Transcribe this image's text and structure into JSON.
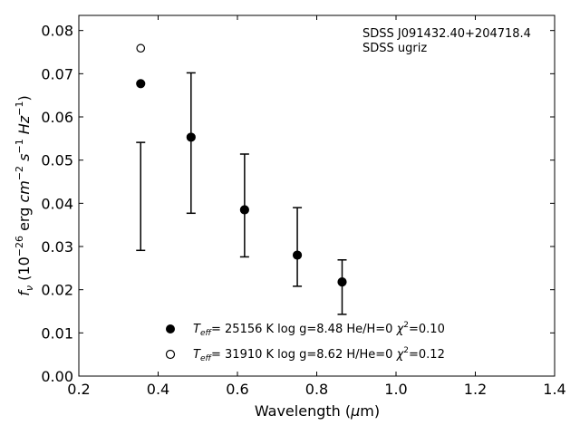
{
  "chart_data": {
    "type": "scatter",
    "xlabel": "Wavelength (μm)",
    "ylabel": "f_ν (10^-26 erg cm^-2 s^-1 Hz^-1)",
    "xlim": [
      0.2,
      1.4
    ],
    "ylim": [
      0.0,
      0.0835
    ],
    "xticks": [
      0.2,
      0.4,
      0.6,
      0.8,
      1.0,
      1.2,
      1.4
    ],
    "xtick_labels": [
      "0.2",
      "0.4",
      "0.6",
      "0.8",
      "1.0",
      "1.2",
      "1.4"
    ],
    "yticks": [
      0.0,
      0.01,
      0.02,
      0.03,
      0.04,
      0.05,
      0.06,
      0.07,
      0.08
    ],
    "ytick_labels": [
      "0.00",
      "0.01",
      "0.02",
      "0.03",
      "0.04",
      "0.05",
      "0.06",
      "0.07",
      "0.08"
    ],
    "grid": false,
    "annotations": [
      "SDSS J091432.40+204718.4",
      "SDSS ugriz"
    ],
    "observed": {
      "x": [
        0.356,
        0.483,
        0.618,
        0.751,
        0.864
      ],
      "y": [
        0.0416,
        0.0553,
        0.0385,
        0.028,
        0.0218
      ],
      "yerr_low": [
        0.0125,
        0.0176,
        0.0109,
        0.0072,
        0.0075
      ],
      "yerr_high": [
        0.0125,
        0.0149,
        0.0129,
        0.011,
        0.0051
      ]
    },
    "series": [
      {
        "legend": "T_eff= 25156 K  log g=8.48  He/H=0  χ²=0.10",
        "marker": "filled-circle",
        "x": [
          0.356,
          0.483,
          0.618,
          0.751,
          0.864
        ],
        "y": [
          0.0677,
          0.0553,
          0.0385,
          0.028,
          0.0218
        ]
      },
      {
        "legend": "T_eff= 31910 K  log g=8.62  H/He=0  χ²=0.12",
        "marker": "open-circle",
        "x": [
          0.356
        ],
        "y": [
          0.0759
        ]
      }
    ],
    "legend_position": "bottom-center"
  }
}
